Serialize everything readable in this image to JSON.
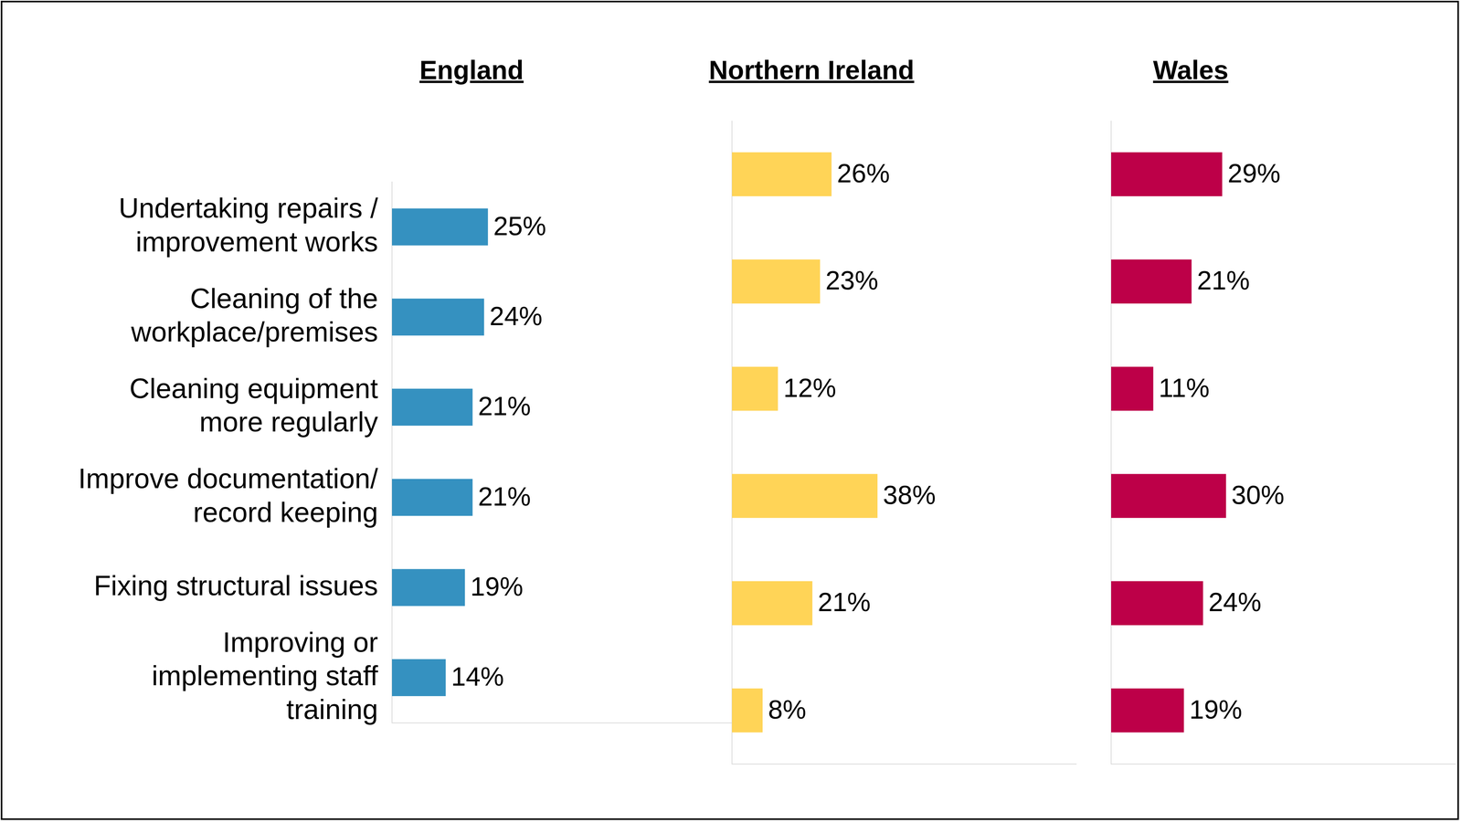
{
  "chart_data": [
    {
      "type": "bar",
      "title": "England",
      "orientation": "horizontal",
      "categories": [
        "Undertaking repairs / improvement works",
        "Cleaning of the workplace/premises",
        "Cleaning equipment more regularly",
        "Improve documentation/ record keeping",
        "Fixing structural issues",
        "Improving or implementing staff training"
      ],
      "values": [
        25,
        24,
        21,
        21,
        19,
        14
      ],
      "value_labels": [
        "25%",
        "24%",
        "21%",
        "21%",
        "19%",
        "14%"
      ],
      "color": "#3591c0",
      "xlim": [
        0,
        90
      ],
      "grid": false,
      "data_labels": true,
      "tick_labels": "y"
    },
    {
      "type": "bar",
      "title": "Northern Ireland",
      "orientation": "horizontal",
      "categories": [
        "Undertaking repairs / improvement works",
        "Cleaning of the workplace/premises",
        "Cleaning equipment more regularly",
        "Improve documentation/ record keeping",
        "Fixing structural issues",
        "Improving or implementing staff training"
      ],
      "values": [
        26,
        23,
        12,
        38,
        21,
        8
      ],
      "value_labels": [
        "26%",
        "23%",
        "12%",
        "38%",
        "21%",
        "8%"
      ],
      "color": "#ffd457",
      "xlim": [
        0,
        90
      ],
      "grid": false,
      "data_labels": true,
      "tick_labels": false
    },
    {
      "type": "bar",
      "title": "Wales",
      "orientation": "horizontal",
      "categories": [
        "Undertaking repairs / improvement works",
        "Cleaning of the workplace/premises",
        "Cleaning equipment more regularly",
        "Improve documentation/ record keeping",
        "Fixing structural issues",
        "Improving or implementing staff training"
      ],
      "values": [
        29,
        21,
        11,
        30,
        24,
        19
      ],
      "value_labels": [
        "29%",
        "21%",
        "11%",
        "30%",
        "24%",
        "19%"
      ],
      "color": "#bd0048",
      "xlim": [
        0,
        90
      ],
      "grid": false,
      "data_labels": true,
      "tick_labels": false
    }
  ]
}
